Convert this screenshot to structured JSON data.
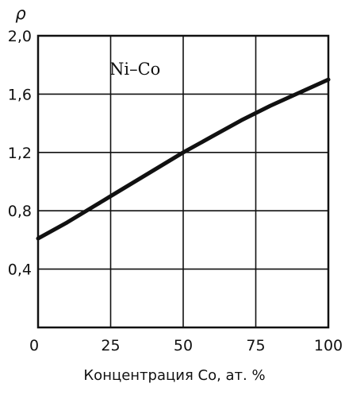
{
  "chart_data": {
    "type": "line",
    "title": "",
    "xlabel": "Концентрация Co, ат. %",
    "ylabel": "ρ",
    "annotation": "Ni–Co",
    "xlim": [
      0,
      100
    ],
    "ylim": [
      0.0,
      2.0
    ],
    "x_ticks": [
      0,
      25,
      50,
      75,
      100
    ],
    "x_tick_labels": [
      "0",
      "25",
      "50",
      "75",
      "100"
    ],
    "y_ticks": [
      0.4,
      0.8,
      1.2,
      1.6,
      2.0
    ],
    "y_tick_labels": [
      "0,4",
      "0,8",
      "1,2",
      "1,6",
      "2,0"
    ],
    "grid": true,
    "series": [
      {
        "x": [
          0,
          10,
          20,
          25,
          30,
          40,
          50,
          60,
          70,
          75,
          80,
          90,
          100
        ],
        "y": [
          0.61,
          0.72,
          0.84,
          0.9,
          0.96,
          1.08,
          1.2,
          1.31,
          1.42,
          1.47,
          1.52,
          1.61,
          1.7
        ],
        "color": "#111111"
      }
    ]
  }
}
